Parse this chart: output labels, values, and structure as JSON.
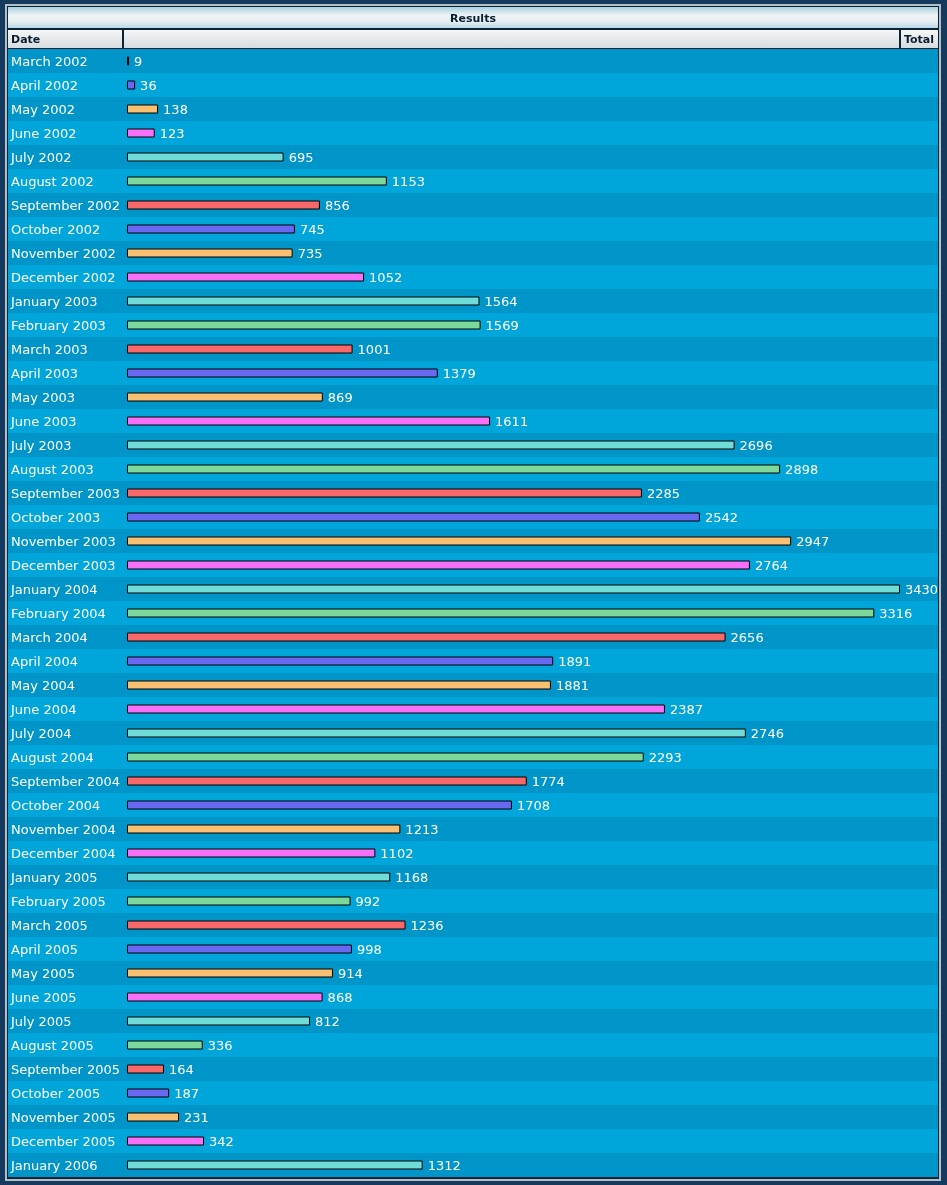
{
  "chart_data": {
    "type": "bar",
    "orientation": "horizontal",
    "title": "Results",
    "ylabel": "Date",
    "xlabel": "Total",
    "categories": [
      "March 2002",
      "April 2002",
      "May 2002",
      "June 2002",
      "July 2002",
      "August 2002",
      "September 2002",
      "October 2002",
      "November 2002",
      "December 2002",
      "January 2003",
      "February 2003",
      "March 2003",
      "April 2003",
      "May 2003",
      "June 2003",
      "July 2003",
      "August 2003",
      "September 2003",
      "October 2003",
      "November 2003",
      "December 2003",
      "January 2004",
      "February 2004",
      "March 2004",
      "April 2004",
      "May 2004",
      "June 2004",
      "July 2004",
      "August 2004",
      "September 2004",
      "October 2004",
      "November 2004",
      "December 2004",
      "January 2005",
      "February 2005",
      "March 2005",
      "April 2005",
      "May 2005",
      "June 2005",
      "July 2005",
      "August 2005",
      "September 2005",
      "October 2005",
      "November 2005",
      "December 2005",
      "January 2006"
    ],
    "values": [
      9,
      36,
      138,
      123,
      695,
      1153,
      856,
      745,
      735,
      1052,
      1564,
      1569,
      1001,
      1379,
      869,
      1611,
      2696,
      2898,
      2285,
      2542,
      2947,
      2764,
      3430,
      3316,
      2656,
      1891,
      1881,
      2387,
      2746,
      2293,
      1774,
      1708,
      1213,
      1102,
      1168,
      992,
      1236,
      998,
      914,
      868,
      812,
      336,
      164,
      187,
      231,
      342,
      1312
    ],
    "colors": [
      "#f86868",
      "#6868f0",
      "#f8c070",
      "#f870f8",
      "#70dcd8",
      "#7cd898",
      "#f86868",
      "#6868f0",
      "#f8c070",
      "#f870f8",
      "#70dcd8",
      "#7cd898",
      "#f86868",
      "#6868f0",
      "#f8c070",
      "#f870f8",
      "#70dcd8",
      "#7cd898",
      "#f86868",
      "#6868f0",
      "#f8c070",
      "#f870f8",
      "#70dcd8",
      "#7cd898",
      "#f86868",
      "#6868f0",
      "#f8c070",
      "#f870f8",
      "#70dcd8",
      "#7cd898",
      "#f86868",
      "#6868f0",
      "#f8c070",
      "#f870f8",
      "#70dcd8",
      "#7cd898",
      "#f86868",
      "#6868f0",
      "#f8c070",
      "#f870f8",
      "#70dcd8",
      "#7cd898",
      "#f86868",
      "#6868f0",
      "#f8c070",
      "#f870f8",
      "#70dcd8"
    ],
    "data_labels": true,
    "tick_labels": "y"
  }
}
